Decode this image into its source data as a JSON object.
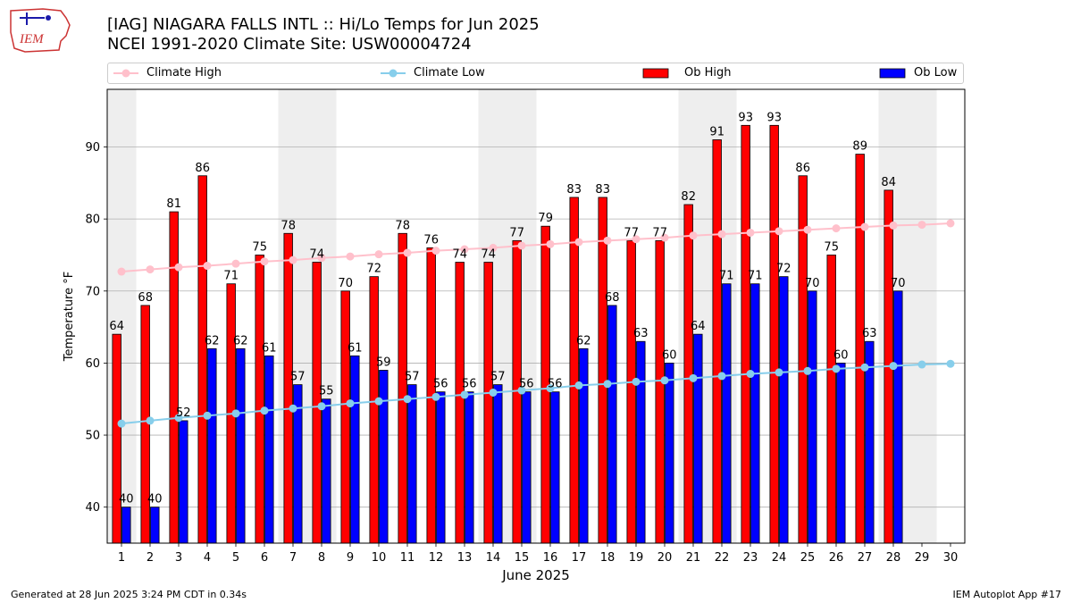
{
  "header": {
    "title_line1": "[IAG] NIAGARA FALLS INTL :: Hi/Lo Temps for Jun 2025",
    "title_line2": "NCEI 1991-2020 Climate Site: USW00004724",
    "logo_text": "IEM"
  },
  "footer": {
    "generated": "Generated at 28 Jun 2025 3:24 PM CDT in 0.34s",
    "app": "IEM Autoplot App #17"
  },
  "colors": {
    "ob_high": "#ff0000",
    "ob_low": "#0000ff",
    "climate_high": "#ffc0cb",
    "climate_low": "#87ceeb",
    "weekend_band": "#eeeeee",
    "grid": "#b0b0b0"
  },
  "chart_data": {
    "type": "bar",
    "xlabel": "June 2025",
    "ylabel": "Temperature °F",
    "ylim": [
      35,
      98
    ],
    "yticks": [
      40,
      50,
      60,
      70,
      80,
      90
    ],
    "grid": "horizontal",
    "legend_placement": "top",
    "categories": [
      "1",
      "2",
      "3",
      "4",
      "5",
      "6",
      "7",
      "8",
      "9",
      "10",
      "11",
      "12",
      "13",
      "14",
      "15",
      "16",
      "17",
      "18",
      "19",
      "20",
      "21",
      "22",
      "23",
      "24",
      "25",
      "26",
      "27",
      "28",
      "29",
      "30"
    ],
    "shaded_days": [
      1,
      7,
      8,
      14,
      15,
      21,
      22,
      28,
      29
    ],
    "series": [
      {
        "name": "Ob High",
        "kind": "bar",
        "color": "#ff0000",
        "values": [
          64,
          68,
          81,
          86,
          71,
          75,
          78,
          74,
          70,
          72,
          78,
          76,
          74,
          74,
          77,
          79,
          83,
          83,
          77,
          77,
          82,
          91,
          93,
          93,
          86,
          75,
          89,
          84,
          null,
          null
        ]
      },
      {
        "name": "Ob Low",
        "kind": "bar",
        "color": "#0000ff",
        "values": [
          40,
          40,
          52,
          62,
          62,
          61,
          57,
          55,
          61,
          59,
          57,
          56,
          56,
          57,
          56,
          56,
          62,
          68,
          63,
          60,
          64,
          71,
          71,
          72,
          70,
          60,
          63,
          70,
          null,
          null
        ]
      },
      {
        "name": "Climate High",
        "kind": "line",
        "color": "#ffc0cb",
        "values": [
          72.7,
          73.0,
          73.3,
          73.5,
          73.8,
          74.1,
          74.3,
          74.6,
          74.8,
          75.1,
          75.3,
          75.6,
          75.8,
          76.0,
          76.3,
          76.5,
          76.8,
          77.0,
          77.2,
          77.4,
          77.7,
          77.9,
          78.1,
          78.3,
          78.5,
          78.7,
          78.9,
          79.1,
          79.2,
          79.4
        ]
      },
      {
        "name": "Climate Low",
        "kind": "line",
        "color": "#87ceeb",
        "values": [
          51.6,
          52.0,
          52.4,
          52.7,
          53.0,
          53.4,
          53.7,
          54.0,
          54.4,
          54.7,
          55.0,
          55.3,
          55.6,
          55.9,
          56.2,
          56.5,
          56.9,
          57.1,
          57.4,
          57.6,
          57.9,
          58.2,
          58.5,
          58.7,
          58.9,
          59.2,
          59.4,
          59.6,
          59.8,
          59.9
        ]
      }
    ]
  }
}
